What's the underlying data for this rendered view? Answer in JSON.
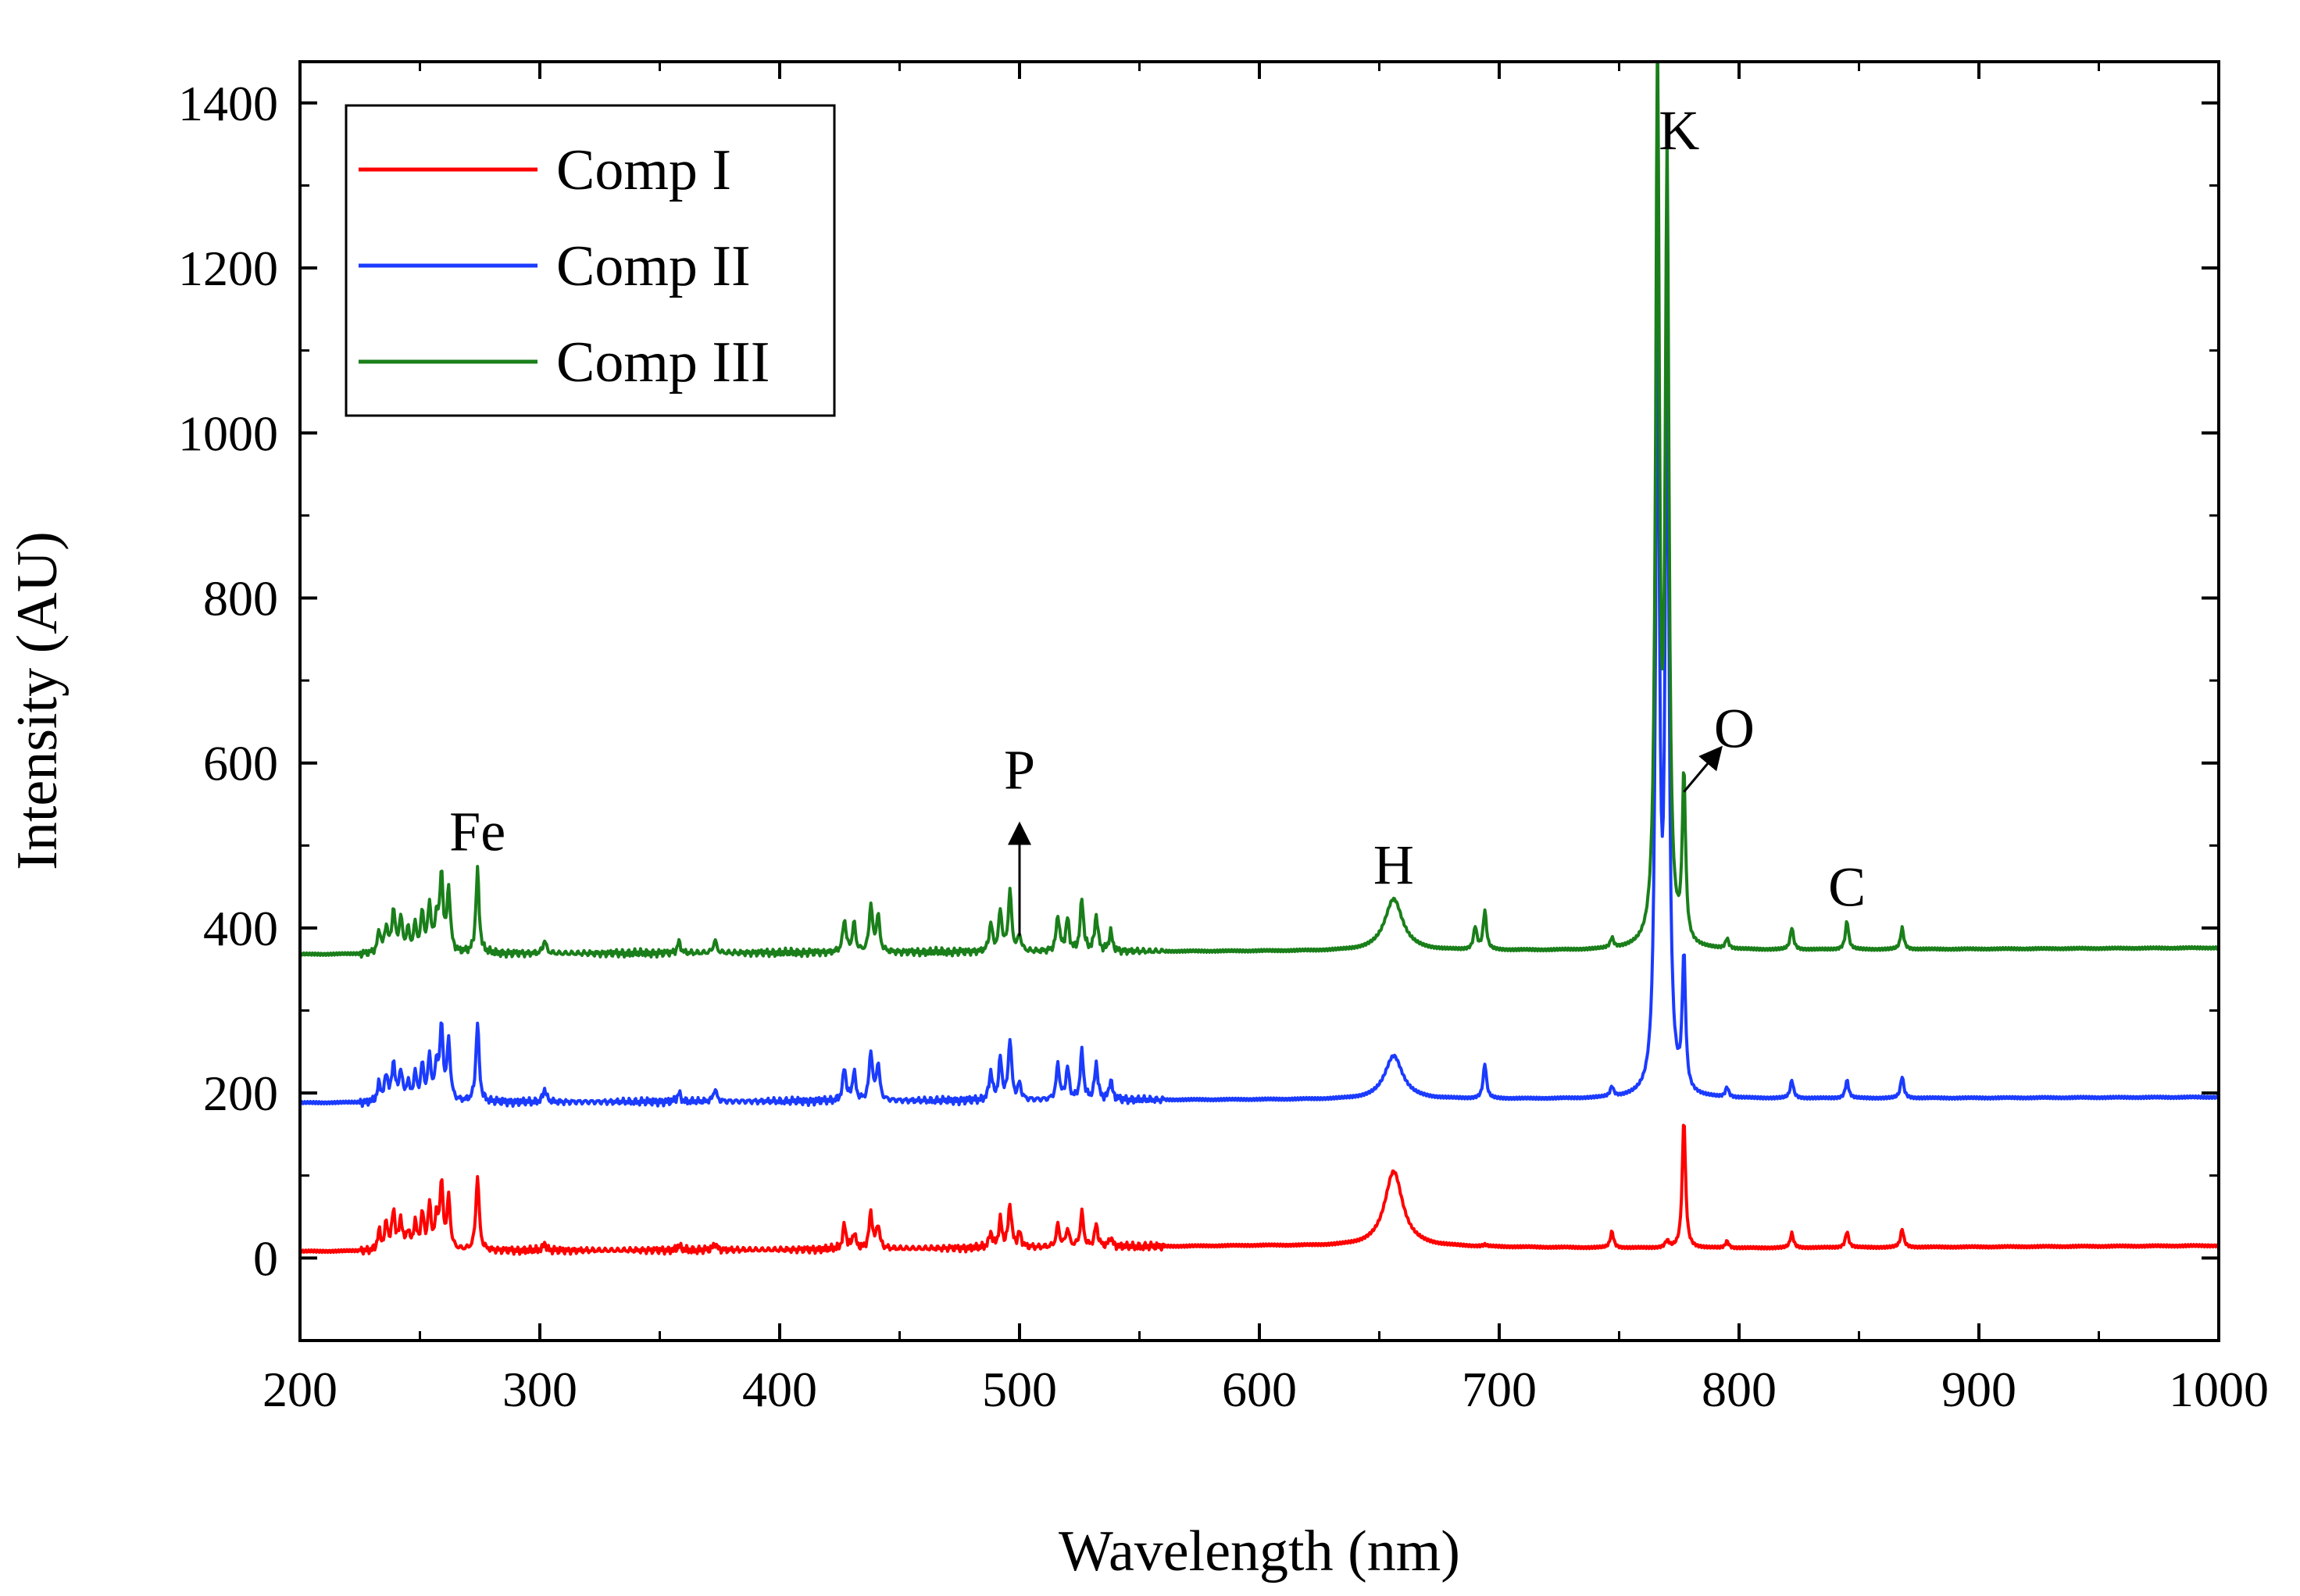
{
  "chart_data": {
    "type": "line",
    "title": "",
    "xlabel": "Wavelength (nm)",
    "ylabel": "Intensity (AU)",
    "xlim": [
      200,
      1000
    ],
    "ylim": [
      -100,
      1450
    ],
    "x_ticks": [
      200,
      300,
      400,
      500,
      600,
      700,
      800,
      900,
      1000
    ],
    "x_tick_labels": [
      "200",
      "300",
      "400",
      "500",
      "600",
      "700",
      "800",
      "900",
      "1000"
    ],
    "y_ticks": [
      0,
      200,
      400,
      600,
      800,
      1000,
      1200,
      1400
    ],
    "y_tick_labels": [
      "0",
      "200",
      "400",
      "600",
      "800",
      "1000",
      "1200",
      "1400"
    ],
    "grid": false,
    "legend_position": "top-left",
    "series": [
      {
        "name": "Comp I",
        "color": "#ff0000",
        "baseline": [
          [
            200,
            8
          ],
          [
            400,
            10
          ],
          [
            600,
            15
          ],
          [
            760,
            12
          ],
          [
            800,
            12
          ],
          [
            1000,
            15
          ]
        ],
        "peaks": [
          [
            233,
            30
          ],
          [
            236,
            40
          ],
          [
            239,
            55
          ],
          [
            242,
            45
          ],
          [
            245,
            30
          ],
          [
            248,
            40
          ],
          [
            251,
            50
          ],
          [
            254,
            60
          ],
          [
            257,
            45
          ],
          [
            259,
            85
          ],
          [
            262,
            70
          ],
          [
            274,
            100
          ],
          [
            302,
            18
          ],
          [
            358,
            15
          ],
          [
            373,
            18
          ],
          [
            427,
            40
          ],
          [
            431,
            30
          ],
          [
            438,
            55
          ],
          [
            441,
            40
          ],
          [
            488,
            30
          ],
          [
            492,
            45
          ],
          [
            496,
            65
          ],
          [
            500,
            30
          ],
          [
            516,
            40
          ],
          [
            520,
            35
          ],
          [
            526,
            55
          ],
          [
            532,
            40
          ],
          [
            538,
            25
          ],
          [
            656,
            105
          ],
          [
            694,
            15
          ],
          [
            747,
            32
          ],
          [
            770,
            20
          ],
          [
            777,
            170
          ],
          [
            795,
            20
          ],
          [
            822,
            30
          ],
          [
            845,
            32
          ],
          [
            868,
            35
          ]
        ]
      },
      {
        "name": "Comp II",
        "color": "#1b3bff",
        "baseline": [
          [
            200,
            188
          ],
          [
            400,
            190
          ],
          [
            600,
            192
          ],
          [
            760,
            193
          ],
          [
            800,
            193
          ],
          [
            1000,
            195
          ]
        ],
        "peaks": [
          [
            233,
            210
          ],
          [
            236,
            220
          ],
          [
            239,
            235
          ],
          [
            242,
            225
          ],
          [
            245,
            210
          ],
          [
            248,
            220
          ],
          [
            251,
            230
          ],
          [
            254,
            240
          ],
          [
            257,
            230
          ],
          [
            259,
            275
          ],
          [
            262,
            260
          ],
          [
            274,
            285
          ],
          [
            302,
            205
          ],
          [
            358,
            200
          ],
          [
            373,
            205
          ],
          [
            427,
            230
          ],
          [
            431,
            225
          ],
          [
            438,
            250
          ],
          [
            441,
            235
          ],
          [
            488,
            225
          ],
          [
            492,
            240
          ],
          [
            496,
            265
          ],
          [
            500,
            210
          ],
          [
            516,
            235
          ],
          [
            520,
            230
          ],
          [
            526,
            250
          ],
          [
            532,
            235
          ],
          [
            538,
            215
          ],
          [
            656,
            245
          ],
          [
            694,
            235
          ],
          [
            747,
            205
          ],
          [
            766,
            1165
          ],
          [
            770,
            1110
          ],
          [
            777,
            355
          ],
          [
            795,
            205
          ],
          [
            822,
            215
          ],
          [
            845,
            215
          ],
          [
            868,
            220
          ]
        ]
      },
      {
        "name": "Comp III",
        "color": "#1a7f1a",
        "baseline": [
          [
            200,
            368
          ],
          [
            400,
            370
          ],
          [
            600,
            372
          ],
          [
            760,
            373
          ],
          [
            800,
            373
          ],
          [
            1000,
            376
          ]
        ],
        "peaks": [
          [
            233,
            395
          ],
          [
            236,
            400
          ],
          [
            239,
            420
          ],
          [
            242,
            410
          ],
          [
            245,
            395
          ],
          [
            248,
            400
          ],
          [
            251,
            415
          ],
          [
            254,
            425
          ],
          [
            257,
            410
          ],
          [
            259,
            460
          ],
          [
            262,
            445
          ],
          [
            274,
            470
          ],
          [
            302,
            385
          ],
          [
            358,
            383
          ],
          [
            373,
            385
          ],
          [
            427,
            410
          ],
          [
            431,
            405
          ],
          [
            438,
            428
          ],
          [
            441,
            415
          ],
          [
            488,
            405
          ],
          [
            492,
            420
          ],
          [
            496,
            445
          ],
          [
            500,
            390
          ],
          [
            516,
            415
          ],
          [
            520,
            410
          ],
          [
            526,
            435
          ],
          [
            532,
            415
          ],
          [
            538,
            395
          ],
          [
            656,
            435
          ],
          [
            690,
            400
          ],
          [
            694,
            420
          ],
          [
            747,
            385
          ],
          [
            766,
            1450
          ],
          [
            770,
            1310
          ],
          [
            777,
            575
          ],
          [
            795,
            385
          ],
          [
            822,
            400
          ],
          [
            845,
            408
          ],
          [
            868,
            400
          ]
        ]
      }
    ],
    "annotations": [
      {
        "text": "Fe",
        "x": 274,
        "y": 475,
        "arrow": false
      },
      {
        "text": "P",
        "x": 500,
        "y": 550,
        "arrow": true,
        "arrow_from": [
          500,
          390
        ],
        "arrow_to": [
          500,
          515
        ]
      },
      {
        "text": "H",
        "x": 656,
        "y": 435,
        "arrow": false
      },
      {
        "text": "K",
        "x": 775,
        "y": 1325,
        "arrow": false
      },
      {
        "text": "O",
        "x": 798,
        "y": 600,
        "arrow": true,
        "arrow_from": [
          777,
          565
        ],
        "arrow_to": [
          790,
          610
        ]
      },
      {
        "text": "C",
        "x": 845,
        "y": 408,
        "arrow": false
      }
    ]
  }
}
